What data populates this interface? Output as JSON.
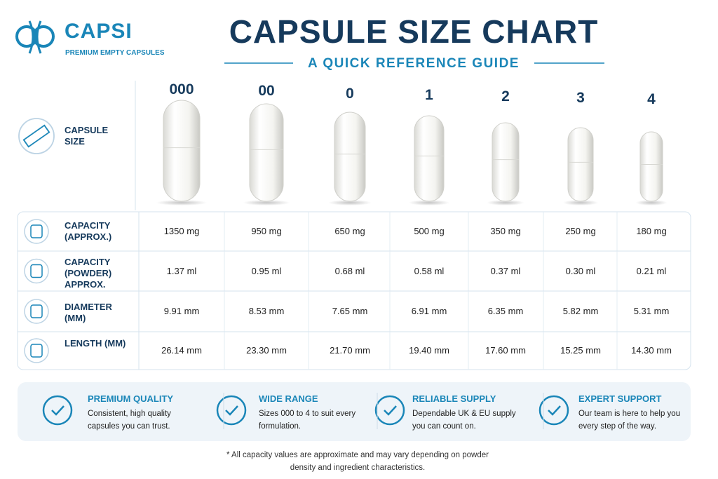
{
  "brand": {
    "name": "CAPSI",
    "tagline": "PREMIUM EMPTY CAPSULES"
  },
  "header": {
    "title": "CAPSULE SIZE CHART",
    "subtitle": "A QUICK REFERENCE GUIDE"
  },
  "table": {
    "size_label": "CAPSULE SIZE",
    "sizes": [
      "000",
      "00",
      "0",
      "1",
      "2",
      "3",
      "4"
    ],
    "rows": [
      {
        "label": "CAPACITY (APPROX.)",
        "values": [
          "1350 mg",
          "950 mg",
          "650 mg",
          "500 mg",
          "350 mg",
          "250 mg",
          "180 mg"
        ]
      },
      {
        "label": "CAPACITY (POWDER) APPROX.",
        "values": [
          "1.37 ml",
          "0.95 ml",
          "0.68 ml",
          "0.58 ml",
          "0.37 ml",
          "0.30 ml",
          "0.21 ml"
        ]
      },
      {
        "label": "DIAMETER (MM)",
        "values": [
          "9.91 mm",
          "8.53 mm",
          "7.65 mm",
          "6.91 mm",
          "6.35 mm",
          "5.82 mm",
          "5.31 mm"
        ]
      },
      {
        "label": "LENGTH (MM)",
        "values": [
          "26.14 mm",
          "23.30 mm",
          "21.70 mm",
          "19.40 mm",
          "17.60 mm",
          "15.25 mm",
          "14.30 mm"
        ]
      }
    ]
  },
  "features": [
    {
      "title": "PREMIUM QUALITY",
      "text": "Consistent, high quality capsules you can trust."
    },
    {
      "title": "WIDE RANGE",
      "text": "Sizes 000 to 4 to suit every formulation."
    },
    {
      "title": "RELIABLE SUPPLY",
      "text": "Dependable UK & EU supply you can count on."
    },
    {
      "title": "EXPERT SUPPORT",
      "text": "Our team is here to help you every step of the way."
    }
  ],
  "footnote": "* All capacity values are approximate and may vary depending on powder density and ingredient characteristics."
}
